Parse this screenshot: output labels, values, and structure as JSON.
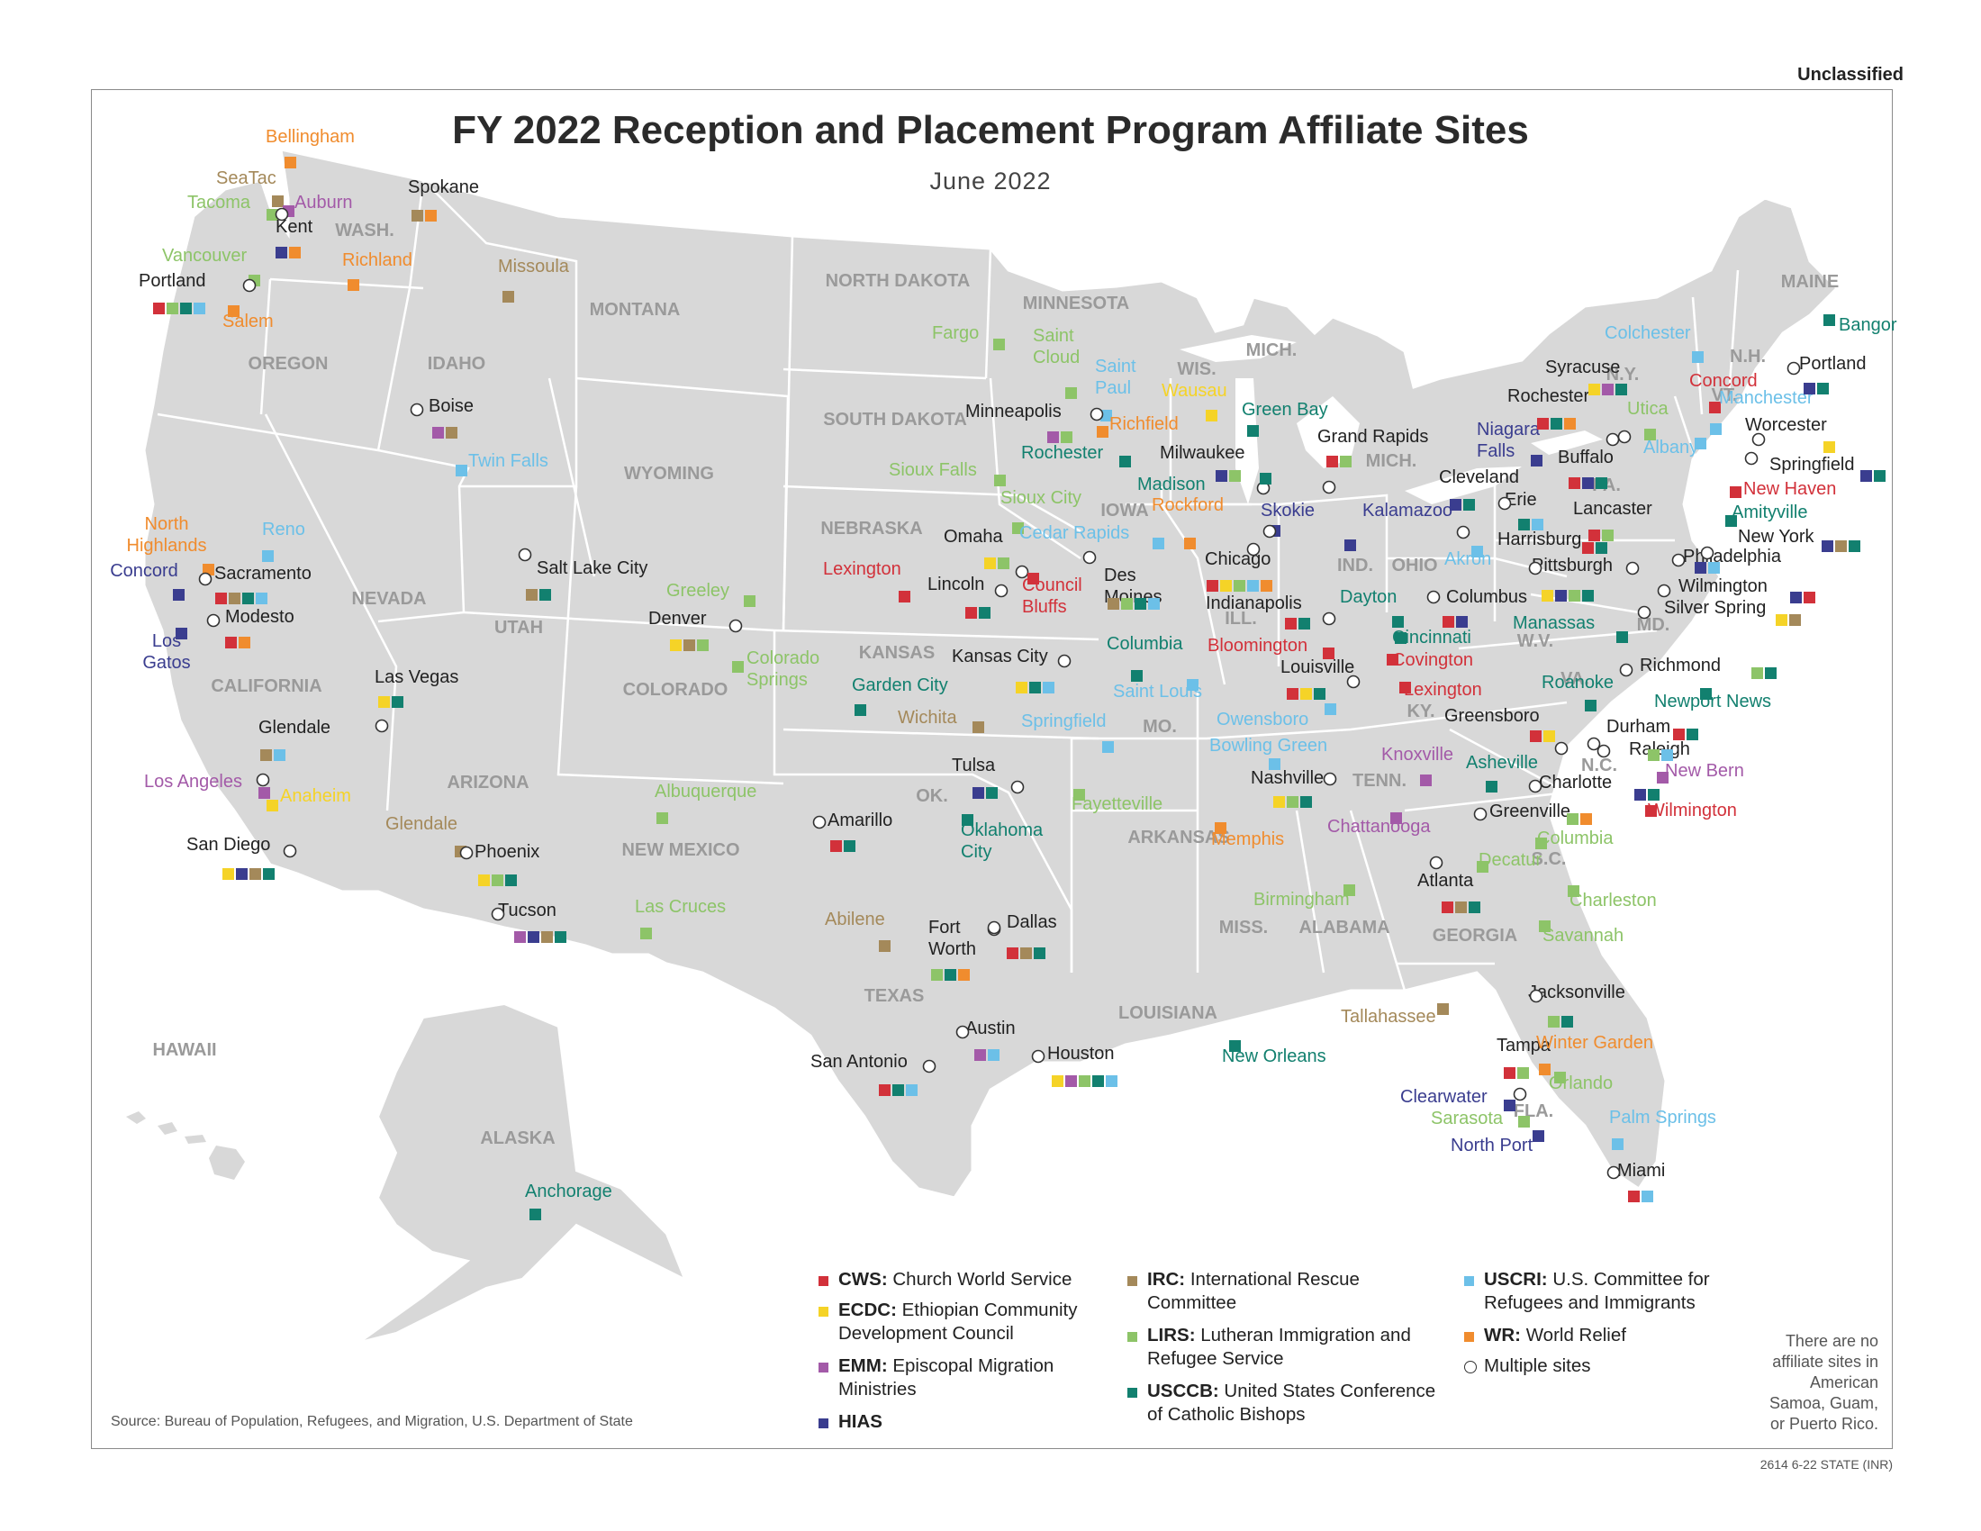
{
  "header": {
    "classification": "Unclassified"
  },
  "title": "FY 2022 Reception and Placement Program Affiliate Sites",
  "subtitle": "June 2022",
  "colors": {
    "CWS": "#d2313a",
    "ECDC": "#f5d327",
    "EMM": "#a35aa8",
    "HIAS": "#3a3d8f",
    "IRC": "#a4895a",
    "LIRS": "#8dc468",
    "USCCB": "#12806f",
    "USCRI": "#6cc0e8",
    "WR": "#f08c2e",
    "land": "#d8d8d8",
    "water": "#ffffff",
    "state_label": "#9a9a9a"
  },
  "legend": [
    {
      "key": "CWS",
      "abbr": "CWS:",
      "text": "Church World Service"
    },
    {
      "key": "ECDC",
      "abbr": "ECDC:",
      "text": "Ethiopian Community Development Council"
    },
    {
      "key": "EMM",
      "abbr": "EMM:",
      "text": "Episcopal Migration Ministries"
    },
    {
      "key": "HIAS",
      "abbr": "HIAS",
      "text": ""
    },
    {
      "key": "IRC",
      "abbr": "IRC:",
      "text": "International Rescue Committee"
    },
    {
      "key": "LIRS",
      "abbr": "LIRS:",
      "text": "Lutheran Immigration and Refugee Service"
    },
    {
      "key": "USCCB",
      "abbr": "USCCB:",
      "text": "United States Conference of Catholic Bishops"
    },
    {
      "key": "USCRI",
      "abbr": "USCRI:",
      "text": "U.S. Committee for Refugees and Immigrants"
    },
    {
      "key": "WR",
      "abbr": "WR:",
      "text": "World Relief"
    },
    {
      "key": "multi",
      "abbr": "",
      "text": "Multiple sites"
    }
  ],
  "note": "There are no affiliate sites in American Samoa, Guam, or Puerto Rico.",
  "source": "Source: Bureau of Population, Refugees, and Migration, U.S. Department of State",
  "code": "2614 6-22 STATE (INR)",
  "state_labels": [
    "WASH.",
    "OREGON",
    "IDAHO",
    "MONTANA",
    "WYOMING",
    "NEVADA",
    "CALIFORNIA",
    "UTAH",
    "COLORADO",
    "ARIZONA",
    "NEW MEXICO",
    "NORTH DAKOTA",
    "SOUTH DAKOTA",
    "NEBRASKA",
    "KANSAS",
    "OK.",
    "TEXAS",
    "MINNESOTA",
    "IOWA",
    "MO.",
    "ARKANSAS",
    "LOUISIANA",
    "WIS.",
    "MICH.",
    "MICH.",
    "ILL.",
    "IND.",
    "OHIO",
    "KY.",
    "TENN.",
    "MISS.",
    "ALABAMA",
    "GEORGIA",
    "FLA.",
    "S.C.",
    "N.C.",
    "VA.",
    "W.V.",
    "PA.",
    "N.Y.",
    "MAINE",
    "N.H.",
    "VT.",
    "MD.",
    "HAWAII",
    "ALASKA"
  ],
  "sites": [
    {
      "name": "Bellingham",
      "agencies": [
        "WR"
      ]
    },
    {
      "name": "SeaTac",
      "agencies": [
        "IRC"
      ]
    },
    {
      "name": "Tacoma",
      "agencies": [
        "LIRS"
      ]
    },
    {
      "name": "Auburn",
      "agencies": [
        "EMM"
      ]
    },
    {
      "name": "Kent",
      "agencies": [
        "HIAS",
        "WR"
      ]
    },
    {
      "name": "Spokane",
      "agencies": [
        "IRC",
        "WR"
      ]
    },
    {
      "name": "Vancouver",
      "agencies": [
        "LIRS"
      ]
    },
    {
      "name": "Portland",
      "agencies": [
        "CWS",
        "LIRS",
        "USCCB",
        "USCRI"
      ]
    },
    {
      "name": "Salem",
      "agencies": [
        "WR"
      ]
    },
    {
      "name": "Richland",
      "agencies": [
        "WR"
      ]
    },
    {
      "name": "Missoula",
      "agencies": [
        "IRC"
      ]
    },
    {
      "name": "Boise",
      "agencies": [
        "EMM",
        "IRC"
      ]
    },
    {
      "name": "Twin Falls",
      "agencies": [
        "USCRI"
      ]
    },
    {
      "name": "North Highlands",
      "agencies": [
        "WR"
      ]
    },
    {
      "name": "Reno",
      "agencies": [
        "USCRI"
      ]
    },
    {
      "name": "Concord",
      "agencies": [
        "HIAS"
      ]
    },
    {
      "name": "Sacramento",
      "agencies": [
        "CWS",
        "IRC",
        "USCCB",
        "USCRI"
      ]
    },
    {
      "name": "Los Gatos",
      "agencies": [
        "HIAS"
      ]
    },
    {
      "name": "Modesto",
      "agencies": [
        "CWS",
        "WR"
      ]
    },
    {
      "name": "Salt Lake City",
      "agencies": [
        "IRC",
        "USCCB"
      ]
    },
    {
      "name": "Las Vegas",
      "agencies": [
        "ECDC",
        "USCCB"
      ]
    },
    {
      "name": "Glendale",
      "agencies": [
        "IRC",
        "USCRI"
      ]
    },
    {
      "name": "Los Angeles",
      "agencies": [
        "EMM"
      ]
    },
    {
      "name": "Anaheim",
      "agencies": [
        "ECDC"
      ]
    },
    {
      "name": "San Diego",
      "agencies": [
        "ECDC",
        "HIAS",
        "IRC",
        "USCCB"
      ]
    },
    {
      "name": "Glendale",
      "agencies": [
        "IRC"
      ]
    },
    {
      "name": "Phoenix",
      "agencies": [
        "ECDC",
        "LIRS",
        "USCCB"
      ]
    },
    {
      "name": "Tucson",
      "agencies": [
        "EMM",
        "HIAS",
        "IRC",
        "USCCB"
      ]
    },
    {
      "name": "Greeley",
      "agencies": [
        "LIRS"
      ]
    },
    {
      "name": "Denver",
      "agencies": [
        "ECDC",
        "IRC",
        "LIRS"
      ]
    },
    {
      "name": "Colorado Springs",
      "agencies": [
        "LIRS"
      ]
    },
    {
      "name": "Albuquerque",
      "agencies": [
        "LIRS"
      ]
    },
    {
      "name": "Las Cruces",
      "agencies": [
        "LIRS"
      ]
    },
    {
      "name": "Fargo",
      "agencies": [
        "LIRS"
      ]
    },
    {
      "name": "Sioux Falls",
      "agencies": [
        "LIRS"
      ]
    },
    {
      "name": "Lexington",
      "agencies": [
        "CWS"
      ]
    },
    {
      "name": "Omaha",
      "agencies": [
        "ECDC",
        "LIRS"
      ]
    },
    {
      "name": "Lincoln",
      "agencies": [
        "CWS",
        "USCCB"
      ]
    },
    {
      "name": "Council Bluffs",
      "agencies": [
        "CWS"
      ]
    },
    {
      "name": "Garden City",
      "agencies": [
        "USCCB"
      ]
    },
    {
      "name": "Wichita",
      "agencies": [
        "IRC"
      ]
    },
    {
      "name": "Kansas City",
      "agencies": [
        "ECDC",
        "USCCB",
        "USCRI"
      ]
    },
    {
      "name": "Tulsa",
      "agencies": [
        "HIAS",
        "USCCB"
      ]
    },
    {
      "name": "Oklahoma City",
      "agencies": [
        "USCCB"
      ]
    },
    {
      "name": "Amarillo",
      "agencies": [
        "CWS",
        "USCCB"
      ]
    },
    {
      "name": "Abilene",
      "agencies": [
        "IRC"
      ]
    },
    {
      "name": "Fort Worth",
      "agencies": [
        "LIRS",
        "USCCB",
        "WR"
      ]
    },
    {
      "name": "Dallas",
      "agencies": [
        "CWS",
        "IRC",
        "USCCB"
      ]
    },
    {
      "name": "Austin",
      "agencies": [
        "EMM",
        "USCRI"
      ]
    },
    {
      "name": "Houston",
      "agencies": [
        "ECDC",
        "EMM",
        "LIRS",
        "USCCB",
        "USCRI"
      ]
    },
    {
      "name": "San Antonio",
      "agencies": [
        "CWS",
        "USCCB",
        "USCRI"
      ]
    },
    {
      "name": "Saint Cloud",
      "agencies": [
        "LIRS"
      ]
    },
    {
      "name": "Saint Paul",
      "agencies": [
        "USCRI"
      ]
    },
    {
      "name": "Minneapolis",
      "agencies": [
        "EMM",
        "LIRS"
      ]
    },
    {
      "name": "Richfield",
      "agencies": [
        "WR"
      ]
    },
    {
      "name": "Rochester",
      "agencies": [
        "USCCB"
      ]
    },
    {
      "name": "Sioux City",
      "agencies": [
        "LIRS"
      ]
    },
    {
      "name": "Cedar Rapids",
      "agencies": [
        "USCRI"
      ]
    },
    {
      "name": "Des Moines",
      "agencies": [
        "IRC",
        "LIRS",
        "USCCB",
        "USCRI"
      ]
    },
    {
      "name": "Columbia",
      "agencies": [
        "USCCB"
      ]
    },
    {
      "name": "Saint Louis",
      "agencies": [
        "USCRI"
      ]
    },
    {
      "name": "Springfield",
      "agencies": [
        "USCRI"
      ]
    },
    {
      "name": "Fayetteville",
      "agencies": [
        "LIRS"
      ]
    },
    {
      "name": "Memphis",
      "agencies": [
        "WR"
      ]
    },
    {
      "name": "New Orleans",
      "agencies": [
        "USCCB"
      ]
    },
    {
      "name": "Wausau",
      "agencies": [
        "ECDC"
      ]
    },
    {
      "name": "Green Bay",
      "agencies": [
        "USCCB"
      ]
    },
    {
      "name": "Milwaukee",
      "agencies": [
        "HIAS",
        "LIRS"
      ]
    },
    {
      "name": "Madison",
      "agencies": [
        "USCCB"
      ]
    },
    {
      "name": "Rockford",
      "agencies": [
        "WR"
      ]
    },
    {
      "name": "Skokie",
      "agencies": [
        "HIAS"
      ]
    },
    {
      "name": "Chicago",
      "agencies": [
        "CWS",
        "ECDC",
        "LIRS",
        "USCRI",
        "WR"
      ]
    },
    {
      "name": "Grand Rapids",
      "agencies": [
        "CWS",
        "LIRS"
      ]
    },
    {
      "name": "Kalamazoo",
      "agencies": [
        "HIAS"
      ]
    },
    {
      "name": "Indianapolis",
      "agencies": [
        "CWS",
        "USCCB"
      ]
    },
    {
      "name": "Bloomington",
      "agencies": [
        "CWS"
      ]
    },
    {
      "name": "Louisville",
      "agencies": [
        "CWS",
        "ECDC",
        "USCCB"
      ]
    },
    {
      "name": "Owensboro",
      "agencies": [
        "USCRI"
      ]
    },
    {
      "name": "Bowling Green",
      "agencies": [
        "USCRI"
      ]
    },
    {
      "name": "Nashville",
      "agencies": [
        "ECDC",
        "LIRS",
        "USCCB"
      ]
    },
    {
      "name": "Knoxville",
      "agencies": [
        "EMM"
      ]
    },
    {
      "name": "Chattanooga",
      "agencies": [
        "EMM"
      ]
    },
    {
      "name": "Birmingham",
      "agencies": [
        "LIRS"
      ]
    },
    {
      "name": "Dayton",
      "agencies": [
        "USCCB"
      ]
    },
    {
      "name": "Cincinnati",
      "agencies": [
        "USCCB"
      ]
    },
    {
      "name": "Covington",
      "agencies": [
        "CWS"
      ]
    },
    {
      "name": "Lexington",
      "agencies": [
        "CWS"
      ]
    },
    {
      "name": "Columbus",
      "agencies": [
        "CWS",
        "HIAS"
      ]
    },
    {
      "name": "Cleveland",
      "agencies": [
        "HIAS",
        "USCCB"
      ]
    },
    {
      "name": "Akron",
      "agencies": [
        "USCRI"
      ]
    },
    {
      "name": "Erie",
      "agencies": [
        "USCCB",
        "USCRI"
      ]
    },
    {
      "name": "Pittsburgh",
      "agencies": [
        "ECDC",
        "HIAS",
        "LIRS",
        "USCCB"
      ]
    },
    {
      "name": "Lancaster",
      "agencies": [
        "CWS",
        "LIRS"
      ]
    },
    {
      "name": "Harrisburg",
      "agencies": [
        "CWS",
        "USCCB"
      ]
    },
    {
      "name": "Philadelphia",
      "agencies": [
        "HIAS",
        "USCRI"
      ]
    },
    {
      "name": "Buffalo",
      "agencies": [
        "CWS",
        "HIAS",
        "USCCB"
      ]
    },
    {
      "name": "Niagara Falls",
      "agencies": [
        "HIAS"
      ]
    },
    {
      "name": "Rochester",
      "agencies": [
        "CWS",
        "USCCB",
        "WR"
      ]
    },
    {
      "name": "Syracuse",
      "agencies": [
        "ECDC",
        "EMM",
        "USCCB"
      ]
    },
    {
      "name": "Utica",
      "agencies": [
        "LIRS"
      ]
    },
    {
      "name": "Albany",
      "agencies": [
        "USCRI"
      ]
    },
    {
      "name": "Colchester",
      "agencies": [
        "USCRI"
      ]
    },
    {
      "name": "Concord",
      "agencies": [
        "CWS"
      ]
    },
    {
      "name": "Manchester",
      "agencies": [
        "USCRI"
      ]
    },
    {
      "name": "Portland",
      "agencies": [
        "HIAS",
        "USCCB"
      ]
    },
    {
      "name": "Bangor",
      "agencies": [
        "USCCB"
      ]
    },
    {
      "name": "Worcester",
      "agencies": [
        "ECDC"
      ]
    },
    {
      "name": "Springfield",
      "agencies": [
        "HIAS",
        "USCCB"
      ]
    },
    {
      "name": "New Haven",
      "agencies": [
        "CWS"
      ]
    },
    {
      "name": "Amityville",
      "agencies": [
        "USCCB"
      ]
    },
    {
      "name": "New York",
      "agencies": [
        "HIAS",
        "IRC",
        "USCCB"
      ]
    },
    {
      "name": "Wilmington",
      "agencies": [
        "HIAS",
        "CWS"
      ]
    },
    {
      "name": "Silver Spring",
      "agencies": [
        "ECDC",
        "IRC"
      ]
    },
    {
      "name": "Manassas",
      "agencies": [
        "USCCB"
      ]
    },
    {
      "name": "Richmond",
      "agencies": [
        "LIRS",
        "USCCB"
      ]
    },
    {
      "name": "Roanoke",
      "agencies": [
        "USCCB"
      ]
    },
    {
      "name": "Newport News",
      "agencies": [
        "USCCB"
      ]
    },
    {
      "name": "Greensboro",
      "agencies": [
        "CWS",
        "ECDC"
      ]
    },
    {
      "name": "Durham",
      "agencies": [
        "CWS",
        "USCCB"
      ]
    },
    {
      "name": "Raleigh",
      "agencies": [
        "LIRS",
        "USCRI"
      ]
    },
    {
      "name": "New Bern",
      "agencies": [
        "EMM"
      ]
    },
    {
      "name": "Asheville",
      "agencies": [
        "USCCB"
      ]
    },
    {
      "name": "Charlotte",
      "agencies": [
        "HIAS",
        "USCCB"
      ]
    },
    {
      "name": "Wilmington",
      "agencies": [
        "CWS"
      ]
    },
    {
      "name": "Greenville",
      "agencies": [
        "LIRS",
        "WR"
      ]
    },
    {
      "name": "Columbia",
      "agencies": [
        "LIRS"
      ]
    },
    {
      "name": "Charleston",
      "agencies": [
        "LIRS"
      ]
    },
    {
      "name": "Savannah",
      "agencies": [
        "LIRS"
      ]
    },
    {
      "name": "Decatur",
      "agencies": [
        "LIRS"
      ]
    },
    {
      "name": "Atlanta",
      "agencies": [
        "CWS",
        "IRC",
        "USCCB"
      ]
    },
    {
      "name": "Tallahassee",
      "agencies": [
        "IRC"
      ]
    },
    {
      "name": "Jacksonville",
      "agencies": [
        "LIRS",
        "USCCB"
      ]
    },
    {
      "name": "Tampa",
      "agencies": [
        "CWS",
        "LIRS"
      ]
    },
    {
      "name": "Clearwater",
      "agencies": [
        "HIAS"
      ]
    },
    {
      "name": "Winter Garden",
      "agencies": [
        "WR"
      ]
    },
    {
      "name": "Orlando",
      "agencies": [
        "LIRS"
      ]
    },
    {
      "name": "Sarasota",
      "agencies": [
        "LIRS"
      ]
    },
    {
      "name": "North Port",
      "agencies": [
        "HIAS"
      ]
    },
    {
      "name": "Palm Springs",
      "agencies": [
        "USCRI"
      ]
    },
    {
      "name": "Miami",
      "agencies": [
        "CWS",
        "USCRI"
      ]
    },
    {
      "name": "Anchorage",
      "agencies": [
        "USCCB"
      ]
    }
  ]
}
